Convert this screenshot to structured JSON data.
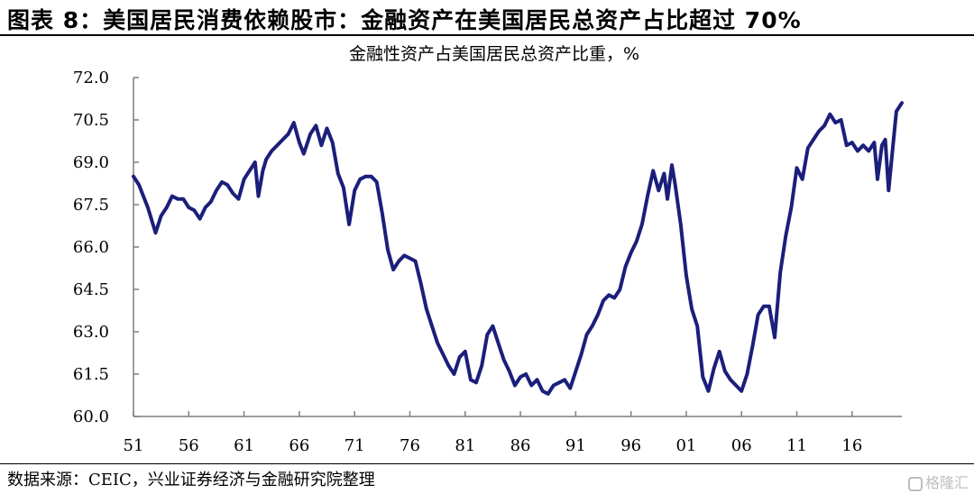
{
  "figure": {
    "title": "图表 8：美国居民消费依赖股市：金融资产在美国居民总资产占比超过 70%",
    "source": "数据来源：CEIC，兴业证券经济与金融研究院整理",
    "watermark": "格隆汇"
  },
  "chart_data": {
    "type": "line",
    "title": "金融性资产占美国居民总资产比重，%",
    "xlabel": "",
    "ylabel": "",
    "ylim": [
      60.0,
      72.0
    ],
    "yticks": [
      "72.0",
      "70.5",
      "69.0",
      "67.5",
      "66.0",
      "64.5",
      "63.0",
      "61.5",
      "60.0"
    ],
    "xlim": [
      1951,
      2020.5
    ],
    "xticks": [
      "51",
      "56",
      "61",
      "66",
      "71",
      "76",
      "81",
      "86",
      "91",
      "96",
      "01",
      "06",
      "11",
      "16"
    ],
    "grid": false,
    "legend": "none",
    "colors": {
      "line": "#1b1f7a",
      "axis": "#7f7f7f"
    },
    "series": [
      {
        "values": [
          [
            1951.0,
            68.5
          ],
          [
            1951.5,
            68.2
          ],
          [
            1952.3,
            67.4
          ],
          [
            1953.0,
            66.5
          ],
          [
            1953.5,
            67.1
          ],
          [
            1954.0,
            67.4
          ],
          [
            1954.5,
            67.8
          ],
          [
            1955.0,
            67.7
          ],
          [
            1955.5,
            67.7
          ],
          [
            1956.0,
            67.4
          ],
          [
            1956.5,
            67.3
          ],
          [
            1957.0,
            67.0
          ],
          [
            1957.5,
            67.4
          ],
          [
            1958.0,
            67.6
          ],
          [
            1958.5,
            68.0
          ],
          [
            1959.0,
            68.3
          ],
          [
            1959.5,
            68.2
          ],
          [
            1960.0,
            67.9
          ],
          [
            1960.5,
            67.7
          ],
          [
            1961.0,
            68.4
          ],
          [
            1961.5,
            68.7
          ],
          [
            1962.0,
            69.0
          ],
          [
            1962.3,
            67.8
          ],
          [
            1962.7,
            68.7
          ],
          [
            1963.0,
            69.1
          ],
          [
            1963.5,
            69.4
          ],
          [
            1964.0,
            69.6
          ],
          [
            1964.5,
            69.8
          ],
          [
            1965.0,
            70.0
          ],
          [
            1965.5,
            70.4
          ],
          [
            1966.0,
            69.7
          ],
          [
            1966.4,
            69.3
          ],
          [
            1967.0,
            70.0
          ],
          [
            1967.5,
            70.3
          ],
          [
            1968.0,
            69.6
          ],
          [
            1968.5,
            70.2
          ],
          [
            1969.0,
            69.7
          ],
          [
            1969.5,
            68.6
          ],
          [
            1970.0,
            68.1
          ],
          [
            1970.5,
            66.8
          ],
          [
            1971.0,
            68.0
          ],
          [
            1971.5,
            68.4
          ],
          [
            1972.0,
            68.5
          ],
          [
            1972.5,
            68.5
          ],
          [
            1973.0,
            68.3
          ],
          [
            1973.5,
            67.2
          ],
          [
            1974.0,
            65.9
          ],
          [
            1974.5,
            65.2
          ],
          [
            1975.0,
            65.5
          ],
          [
            1975.5,
            65.7
          ],
          [
            1976.0,
            65.6
          ],
          [
            1976.5,
            65.5
          ],
          [
            1977.0,
            64.7
          ],
          [
            1977.5,
            63.8
          ],
          [
            1978.0,
            63.2
          ],
          [
            1978.5,
            62.6
          ],
          [
            1979.0,
            62.2
          ],
          [
            1979.5,
            61.8
          ],
          [
            1980.0,
            61.5
          ],
          [
            1980.5,
            62.1
          ],
          [
            1981.0,
            62.3
          ],
          [
            1981.5,
            61.3
          ],
          [
            1982.0,
            61.2
          ],
          [
            1982.5,
            61.8
          ],
          [
            1983.0,
            62.9
          ],
          [
            1983.5,
            63.2
          ],
          [
            1984.0,
            62.6
          ],
          [
            1984.5,
            62.0
          ],
          [
            1985.0,
            61.6
          ],
          [
            1985.5,
            61.1
          ],
          [
            1986.0,
            61.4
          ],
          [
            1986.5,
            61.5
          ],
          [
            1987.0,
            61.1
          ],
          [
            1987.5,
            61.3
          ],
          [
            1988.0,
            60.9
          ],
          [
            1988.5,
            60.8
          ],
          [
            1989.0,
            61.1
          ],
          [
            1989.5,
            61.2
          ],
          [
            1990.0,
            61.3
          ],
          [
            1990.5,
            61.0
          ],
          [
            1991.0,
            61.6
          ],
          [
            1991.5,
            62.2
          ],
          [
            1992.0,
            62.9
          ],
          [
            1992.5,
            63.2
          ],
          [
            1993.0,
            63.6
          ],
          [
            1993.5,
            64.1
          ],
          [
            1994.0,
            64.3
          ],
          [
            1994.5,
            64.2
          ],
          [
            1995.0,
            64.5
          ],
          [
            1995.5,
            65.3
          ],
          [
            1996.0,
            65.8
          ],
          [
            1996.5,
            66.2
          ],
          [
            1997.0,
            66.8
          ],
          [
            1997.5,
            67.8
          ],
          [
            1998.0,
            68.7
          ],
          [
            1998.5,
            68.0
          ],
          [
            1999.0,
            68.6
          ],
          [
            1999.3,
            67.7
          ],
          [
            1999.7,
            68.9
          ],
          [
            2000.0,
            68.2
          ],
          [
            2000.5,
            66.8
          ],
          [
            2001.0,
            65.0
          ],
          [
            2001.5,
            63.8
          ],
          [
            2002.0,
            63.2
          ],
          [
            2002.5,
            61.4
          ],
          [
            2003.0,
            60.9
          ],
          [
            2003.5,
            61.7
          ],
          [
            2004.0,
            62.3
          ],
          [
            2004.5,
            61.6
          ],
          [
            2005.0,
            61.3
          ],
          [
            2005.5,
            61.1
          ],
          [
            2006.0,
            60.9
          ],
          [
            2006.5,
            61.5
          ],
          [
            2007.0,
            62.5
          ],
          [
            2007.5,
            63.6
          ],
          [
            2008.0,
            63.9
          ],
          [
            2008.5,
            63.9
          ],
          [
            2009.0,
            62.8
          ],
          [
            2009.5,
            65.1
          ],
          [
            2010.0,
            66.4
          ],
          [
            2010.5,
            67.4
          ],
          [
            2011.0,
            68.8
          ],
          [
            2011.5,
            68.4
          ],
          [
            2012.0,
            69.5
          ],
          [
            2012.5,
            69.8
          ],
          [
            2013.0,
            70.1
          ],
          [
            2013.5,
            70.3
          ],
          [
            2014.0,
            70.7
          ],
          [
            2014.5,
            70.4
          ],
          [
            2015.0,
            70.5
          ],
          [
            2015.5,
            69.6
          ],
          [
            2016.0,
            69.7
          ],
          [
            2016.5,
            69.4
          ],
          [
            2017.0,
            69.6
          ],
          [
            2017.5,
            69.4
          ],
          [
            2018.0,
            69.7
          ],
          [
            2018.3,
            68.4
          ],
          [
            2018.7,
            69.6
          ],
          [
            2019.0,
            69.8
          ],
          [
            2019.3,
            68.0
          ],
          [
            2019.7,
            69.6
          ],
          [
            2020.0,
            70.8
          ],
          [
            2020.5,
            71.1
          ]
        ]
      }
    ]
  }
}
